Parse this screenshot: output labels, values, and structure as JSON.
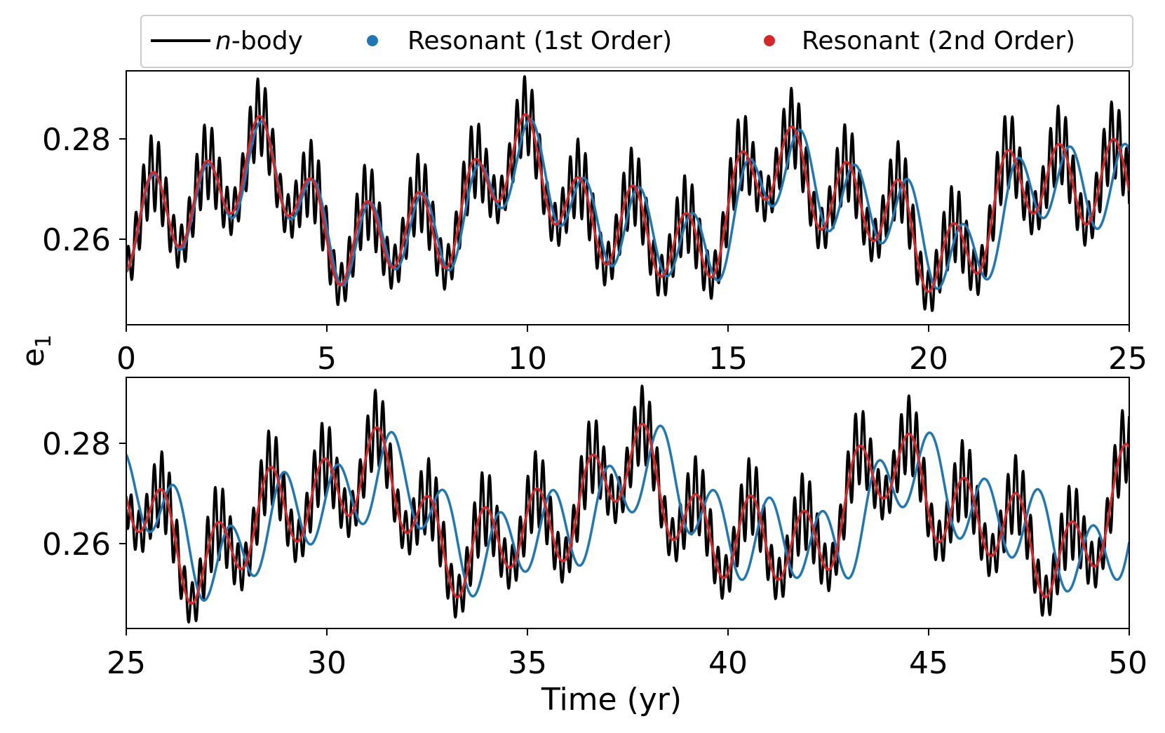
{
  "chart_data": [
    {
      "type": "line",
      "panel": "top",
      "x_range": [
        0,
        25
      ],
      "ylim": [
        0.243,
        0.292
      ],
      "x_ticks": [
        "0",
        "5",
        "10",
        "15",
        "20",
        "25"
      ],
      "x_tick_values": [
        0,
        5,
        10,
        15,
        20,
        25
      ],
      "y_ticks": [
        "0.26",
        "0.28"
      ],
      "y_tick_values": [
        0.26,
        0.28
      ],
      "ylabel": "e",
      "ylabel_sub": "1",
      "xlabel": "",
      "grid": false
    },
    {
      "type": "line",
      "panel": "bottom",
      "x_range": [
        25,
        50
      ],
      "ylim": [
        0.243,
        0.292
      ],
      "x_ticks": [
        "25",
        "30",
        "35",
        "40",
        "45",
        "50"
      ],
      "x_tick_values": [
        25,
        30,
        35,
        40,
        45,
        50
      ],
      "y_ticks": [
        "0.26",
        "0.28"
      ],
      "y_tick_values": [
        0.26,
        0.28
      ],
      "xlabel": "Time (yr)",
      "grid": false
    }
  ],
  "legend": {
    "placement": "top, above panels",
    "items": [
      {
        "label_italic": "n",
        "label": "-body",
        "marker": "line",
        "color": "#000000"
      },
      {
        "label": "Resonant (1st Order)",
        "marker": "dot",
        "color": "#1f77b4"
      },
      {
        "label": "Resonant (2nd Order)",
        "marker": "dot",
        "color": "#d62728"
      }
    ]
  },
  "series_model": {
    "nbody": {
      "name": "n-body",
      "color": "#000000",
      "mean": 0.2655,
      "slow_amp": 0.0095,
      "mid_amp": 0.0075,
      "mid_period_yr": 1.33,
      "fast_amp": 0.0075,
      "fast_period_yr": 0.19
    },
    "first_order": {
      "name": "Resonant (1st Order)",
      "color": "#1f77b4",
      "mean": 0.265,
      "slow_amp": 0.009,
      "amp": 0.0075,
      "period_yr": 1.345
    },
    "second_order": {
      "name": "Resonant (2nd Order)",
      "color": "#d62728",
      "mean": 0.2655,
      "slow_amp": 0.0095,
      "amp": 0.0075,
      "period_yr": 1.33
    },
    "slow_period_yr": 6.9,
    "samples_per_panel": 2600
  }
}
